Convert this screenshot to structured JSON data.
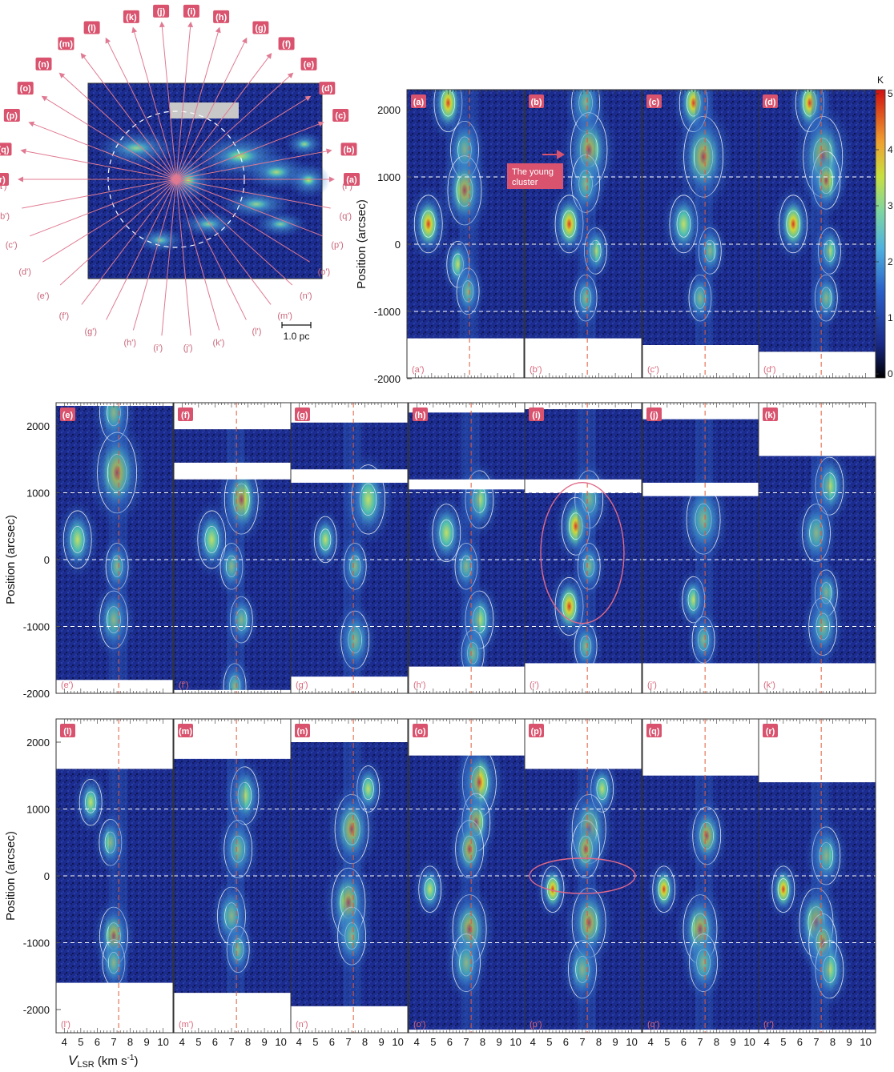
{
  "figure": {
    "colorbar": {
      "unit": "K",
      "ticks": [
        "5",
        "4",
        "3",
        "2",
        "1",
        "0"
      ]
    },
    "map": {
      "scale_bar": "1.0 pc",
      "cut_labels": [
        "(a)",
        "(b)",
        "(c)",
        "(d)",
        "(e)",
        "(f)",
        "(g)",
        "(h)",
        "(i)",
        "(j)",
        "(k)",
        "(l)",
        "(m)",
        "(n)",
        "(o)",
        "(p)",
        "(q)",
        "(r)"
      ],
      "cut_labels_prime": [
        "(a')",
        "(b')",
        "(c')",
        "(d')",
        "(e')",
        "(f')",
        "(g')",
        "(h')",
        "(i')",
        "(j')",
        "(k')",
        "(l')",
        "(m')",
        "(n')",
        "(o')",
        "(p')",
        "(q')",
        "(r')"
      ]
    },
    "annotation": {
      "young_cluster": [
        "The young",
        "cluster"
      ]
    },
    "y_axis_title": "Position (arcsec)",
    "y_ticks": [
      "2000",
      "1000",
      "0",
      "-1000",
      "-2000"
    ],
    "x_ticks": [
      "4",
      "5",
      "6",
      "7",
      "8",
      "9",
      "10"
    ],
    "x_axis_title": {
      "main": "V",
      "sub": "LSR",
      "unit": " (km s",
      "exp": "-1",
      "close": ")"
    },
    "panels": [
      {
        "label": "(a)",
        "prime": "(a')"
      },
      {
        "label": "(b)",
        "prime": "(b')"
      },
      {
        "label": "(c)",
        "prime": "(c')"
      },
      {
        "label": "(d)",
        "prime": "(d')"
      },
      {
        "label": "(e)",
        "prime": "(e')"
      },
      {
        "label": "(f)",
        "prime": "(f')"
      },
      {
        "label": "(g)",
        "prime": "(g')"
      },
      {
        "label": "(h)",
        "prime": "(h')"
      },
      {
        "label": "(i)",
        "prime": "(i')"
      },
      {
        "label": "(j)",
        "prime": "(j')"
      },
      {
        "label": "(k)",
        "prime": "(k')"
      },
      {
        "label": "(l)",
        "prime": "(l')"
      },
      {
        "label": "(m)",
        "prime": "(m')"
      },
      {
        "label": "(n)",
        "prime": "(n')"
      },
      {
        "label": "(o)",
        "prime": "(o')"
      },
      {
        "label": "(p)",
        "prime": "(p')"
      },
      {
        "label": "(q)",
        "prime": "(q')"
      },
      {
        "label": "(r)",
        "prime": "(r')"
      }
    ],
    "colors": {
      "background": "#1b2a8a",
      "badge": "#d9536e",
      "systemic_line": "#e05a3a",
      "contour": "#ffffff",
      "ellipse": "#e06a8a"
    }
  }
}
